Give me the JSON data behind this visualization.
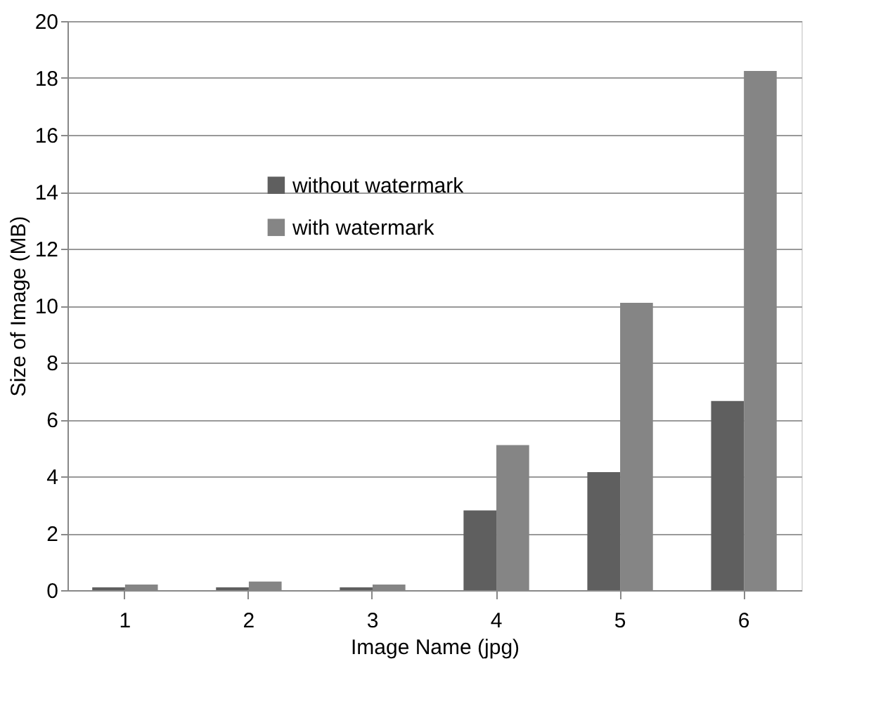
{
  "chart_data": {
    "type": "bar",
    "xlabel": "Image Name (jpg)",
    "ylabel": "Size of Image (MB)",
    "categories": [
      "1",
      "2",
      "3",
      "4",
      "5",
      "6"
    ],
    "series": [
      {
        "name": "without watermark",
        "color": "#5f5f5f",
        "values": [
          0.1,
          0.1,
          0.1,
          2.8,
          4.15,
          6.65
        ]
      },
      {
        "name": "with watermark",
        "color": "#858585",
        "values": [
          0.2,
          0.3,
          0.2,
          5.1,
          10.1,
          18.25
        ]
      }
    ],
    "ylim": [
      0,
      20
    ],
    "yticks": [
      0,
      2,
      4,
      6,
      8,
      10,
      12,
      14,
      16,
      18,
      20
    ],
    "grid": "y",
    "legend": "top left"
  }
}
